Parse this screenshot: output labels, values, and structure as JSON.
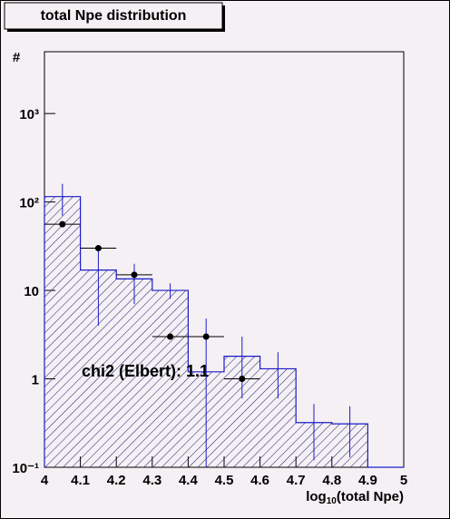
{
  "chart_data": {
    "type": "histogram",
    "title": "total Npe distribution",
    "y_label": "#",
    "x_label": {
      "base": "log",
      "sub": "10",
      "rest": "(total Npe)"
    },
    "annotation": "chi2 (Elbert): 1.1",
    "bins": [
      4,
      4.1,
      4.2,
      4.3,
      4.4,
      4.5,
      4.6,
      4.7,
      4.8,
      4.9,
      5
    ],
    "values": [
      115,
      17,
      13.5,
      10,
      1.2,
      1.8,
      1.3,
      0.32,
      0.31,
      0
    ],
    "errors": [
      45,
      13,
      6.5,
      2,
      3.6,
      1.2,
      0.7,
      0.2,
      0.18,
      0
    ],
    "color": "#1c1cc8",
    "points": {
      "x": [
        4.05,
        4.15,
        4.25,
        4.35,
        4.45,
        4.55
      ],
      "values": [
        56,
        30,
        15,
        3,
        3,
        1
      ],
      "xerr": [
        0.05,
        0.05,
        0.05,
        0.05,
        0.05,
        0.05
      ],
      "color": "#000000"
    },
    "xlim": [
      4,
      5
    ],
    "xticks": [
      4,
      4.1,
      4.2,
      4.3,
      4.4,
      4.5,
      4.6,
      4.7,
      4.8,
      4.9,
      5
    ],
    "ylim": [
      0.1,
      5000
    ],
    "yticks": [
      {
        "value": 0.1,
        "label": "10⁻¹"
      },
      1,
      10,
      {
        "value": 100,
        "label": "10²"
      },
      {
        "value": 1000,
        "label": "10³"
      }
    ],
    "log_y": true
  }
}
